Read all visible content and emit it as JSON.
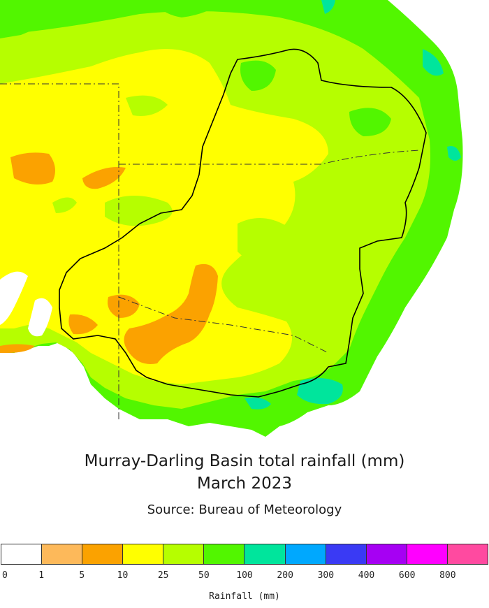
{
  "map": {
    "title_line1": "Murray-Darling Basin total rainfall (mm)",
    "title_line2": "March 2023",
    "source": "Source: Bureau of Meteorology"
  },
  "legend": {
    "label": "Rainfall (mm)",
    "ticks": [
      "0",
      "1",
      "5",
      "10",
      "25",
      "50",
      "100",
      "200",
      "300",
      "400",
      "600",
      "800"
    ],
    "colors": [
      "#ffffff",
      "#fdb95a",
      "#fba200",
      "#ffff00",
      "#b6fe00",
      "#52f600",
      "#00e59c",
      "#00a8fe",
      "#3a3af4",
      "#a600f3",
      "#ff00ff",
      "#ff4aa0"
    ]
  }
}
